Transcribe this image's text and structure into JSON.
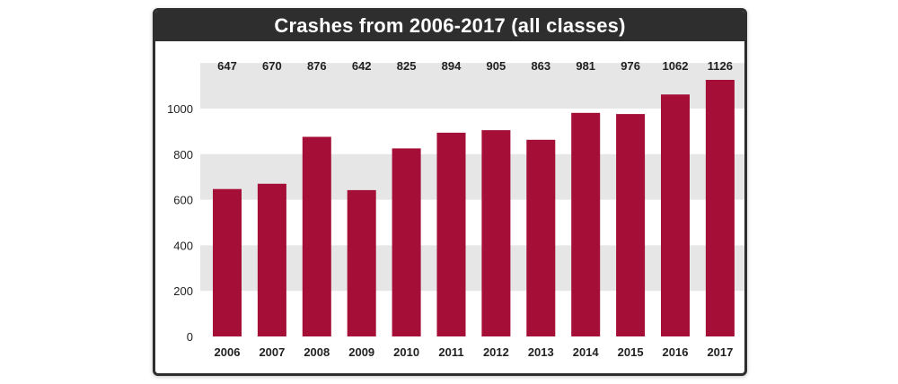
{
  "chart_data": {
    "type": "bar",
    "title": "Crashes from 2006-2017 (all classes)",
    "xlabel": "",
    "ylabel": "",
    "categories": [
      "2006",
      "2007",
      "2008",
      "2009",
      "2010",
      "2011",
      "2012",
      "2013",
      "2014",
      "2015",
      "2016",
      "2017"
    ],
    "values": [
      647,
      670,
      876,
      642,
      825,
      894,
      905,
      863,
      981,
      976,
      1062,
      1126
    ],
    "value_labels": [
      "647",
      "670",
      "876",
      "642",
      "825",
      "894",
      "905",
      "863",
      "981",
      "976",
      "1062",
      "1126"
    ],
    "y_ticks": [
      0,
      200,
      400,
      600,
      800,
      1000
    ],
    "y_tick_labels": [
      "0",
      "200",
      "400",
      "600",
      "800",
      "1000"
    ],
    "ylim": [
      0,
      1000
    ],
    "grid": "alternating horizontal bands",
    "legend": "none",
    "colors": {
      "bar": "#a50e36",
      "band": "#e6e6e6",
      "title_bar": "#2e2e2e",
      "title_text": "#ffffff",
      "text": "#222222"
    }
  }
}
